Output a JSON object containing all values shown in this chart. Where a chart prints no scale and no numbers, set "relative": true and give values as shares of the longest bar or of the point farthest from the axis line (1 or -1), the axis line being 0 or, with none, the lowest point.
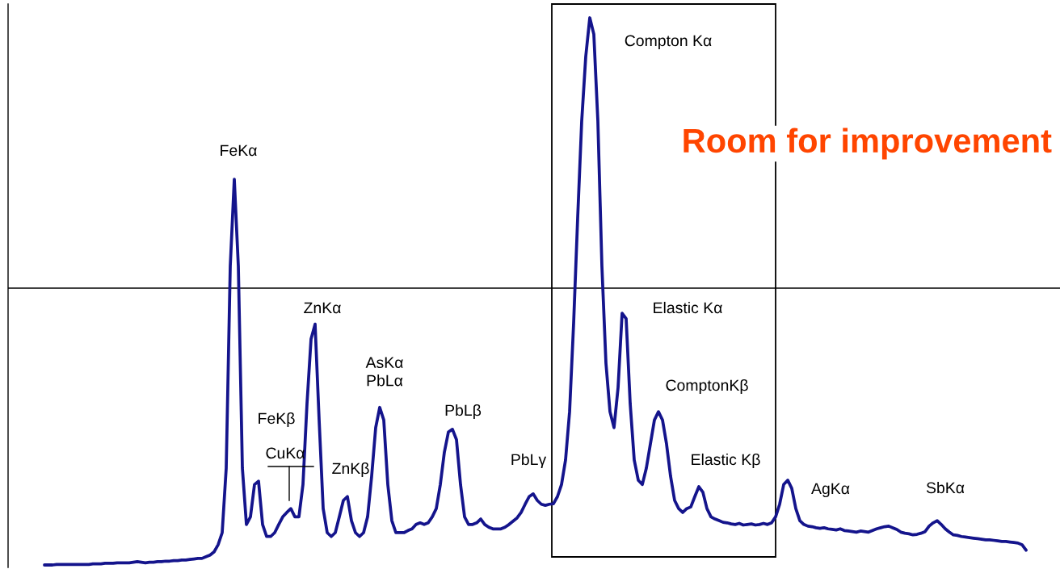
{
  "chart_data": {
    "type": "line",
    "relative": true,
    "color": "#14148c",
    "categories": [
      null,
      null,
      null,
      null,
      null,
      null,
      null,
      null,
      null,
      null,
      null,
      null,
      null,
      null,
      null,
      null,
      null,
      null,
      null,
      null,
      null,
      null,
      null,
      null,
      null,
      null,
      null,
      null,
      null,
      null,
      null,
      null,
      null,
      null,
      null,
      null,
      null,
      null,
      null,
      null,
      null,
      null,
      null,
      null,
      null,
      null,
      null,
      null,
      null,
      null,
      null,
      null,
      null,
      null,
      null,
      null,
      null,
      null,
      null,
      null,
      null,
      null,
      null,
      null,
      null,
      null,
      null,
      null,
      null,
      null,
      null,
      null,
      null,
      null,
      null,
      null,
      null,
      null,
      null,
      null,
      null,
      null,
      null,
      null,
      null,
      null,
      null,
      null,
      null,
      null,
      null,
      null,
      null,
      null,
      null,
      null,
      null,
      null,
      null,
      null,
      null,
      null,
      null,
      null,
      null,
      null,
      null,
      null,
      null,
      null,
      null,
      null,
      null,
      null,
      null,
      null,
      null,
      null,
      null,
      null,
      null,
      null,
      null,
      null,
      null,
      null,
      null,
      null,
      null,
      null,
      null,
      null,
      null,
      null,
      null,
      null,
      null,
      null,
      null,
      null,
      null,
      null,
      null,
      null,
      null,
      null,
      null,
      null,
      null,
      null,
      null,
      null,
      null,
      null,
      null,
      null,
      null,
      null,
      null,
      null,
      null,
      null,
      null,
      null,
      null,
      null,
      null,
      null,
      null,
      null,
      null,
      null,
      null,
      null,
      null,
      null,
      null,
      null,
      null,
      null,
      null,
      null,
      null,
      null,
      null,
      null,
      null,
      null,
      null,
      null,
      null,
      null,
      null,
      null,
      null,
      null,
      null,
      null,
      null,
      null,
      null,
      null,
      null,
      null,
      null,
      null,
      null,
      null,
      null,
      null,
      null,
      null,
      null,
      null,
      null,
      null,
      null,
      null,
      null,
      null,
      null,
      null,
      null,
      null,
      null,
      null,
      null,
      null,
      null,
      null,
      null,
      null,
      null,
      null,
      null,
      null,
      null,
      null,
      null,
      null,
      null,
      null,
      null,
      null
    ],
    "values": [
      0,
      0,
      0,
      0.001,
      0.001,
      0.001,
      0.001,
      0.001,
      0.001,
      0.001,
      0.001,
      0.001,
      0.002,
      0.002,
      0.002,
      0.003,
      0.003,
      0.003,
      0.004,
      0.004,
      0.004,
      0.004,
      0.005,
      0.006,
      0.005,
      0.004,
      0.005,
      0.005,
      0.006,
      0.006,
      0.007,
      0.007,
      0.008,
      0.008,
      0.009,
      0.009,
      0.01,
      0.011,
      0.012,
      0.012,
      0.015,
      0.018,
      0.024,
      0.037,
      0.059,
      0.177,
      0.546,
      0.705,
      0.546,
      0.177,
      0.074,
      0.088,
      0.147,
      0.153,
      0.074,
      0.052,
      0.052,
      0.059,
      0.074,
      0.088,
      0.096,
      0.103,
      0.088,
      0.088,
      0.147,
      0.295,
      0.413,
      0.44,
      0.265,
      0.103,
      0.059,
      0.052,
      0.059,
      0.088,
      0.118,
      0.125,
      0.081,
      0.059,
      0.052,
      0.059,
      0.088,
      0.162,
      0.251,
      0.288,
      0.265,
      0.147,
      0.081,
      0.059,
      0.059,
      0.059,
      0.063,
      0.066,
      0.074,
      0.077,
      0.074,
      0.077,
      0.088,
      0.103,
      0.147,
      0.206,
      0.243,
      0.248,
      0.229,
      0.147,
      0.088,
      0.074,
      0.074,
      0.077,
      0.084,
      0.074,
      0.069,
      0.066,
      0.066,
      0.066,
      0.069,
      0.074,
      0.08,
      0.086,
      0.096,
      0.111,
      0.125,
      0.13,
      0.118,
      0.111,
      0.109,
      0.111,
      0.112,
      0.125,
      0.147,
      0.192,
      0.28,
      0.442,
      0.634,
      0.811,
      0.929,
      1,
      0.97,
      0.811,
      0.546,
      0.369,
      0.28,
      0.251,
      0.324,
      0.46,
      0.45,
      0.295,
      0.192,
      0.155,
      0.147,
      0.177,
      0.221,
      0.265,
      0.28,
      0.265,
      0.221,
      0.162,
      0.118,
      0.103,
      0.096,
      0.103,
      0.106,
      0.125,
      0.143,
      0.133,
      0.103,
      0.088,
      0.084,
      0.081,
      0.078,
      0.077,
      0.075,
      0.074,
      0.076,
      0.073,
      0.074,
      0.075,
      0.073,
      0.074,
      0.076,
      0.074,
      0.077,
      0.088,
      0.111,
      0.147,
      0.155,
      0.14,
      0.103,
      0.081,
      0.074,
      0.071,
      0.07,
      0.068,
      0.067,
      0.068,
      0.066,
      0.065,
      0.064,
      0.066,
      0.063,
      0.062,
      0.061,
      0.06,
      0.062,
      0.061,
      0.06,
      0.063,
      0.066,
      0.068,
      0.07,
      0.071,
      0.068,
      0.065,
      0.06,
      0.058,
      0.057,
      0.055,
      0.056,
      0.058,
      0.061,
      0.071,
      0.077,
      0.081,
      0.074,
      0.066,
      0.06,
      0.055,
      0.054,
      0.052,
      0.051,
      0.05,
      0.049,
      0.048,
      0.047,
      0.046,
      0.046,
      0.045,
      0.044,
      0.043,
      0.043,
      0.042,
      0.041,
      0.04,
      0.037,
      0.027
    ],
    "ref_lines": [
      {
        "axis": "y",
        "value": 0.506,
        "color": "#000000"
      }
    ],
    "annotations": [
      "FeKα",
      "FeKβ",
      "CuKα",
      "ZnKα",
      "ZnKβ",
      "AsKα\nPbLα",
      "PbLβ",
      "PbLγ",
      "Compton Kα",
      "Elastic Kα",
      "ComptonKβ",
      "Elastic Kβ",
      "AgKα",
      "SbKα",
      "Room for improvement"
    ]
  }
}
